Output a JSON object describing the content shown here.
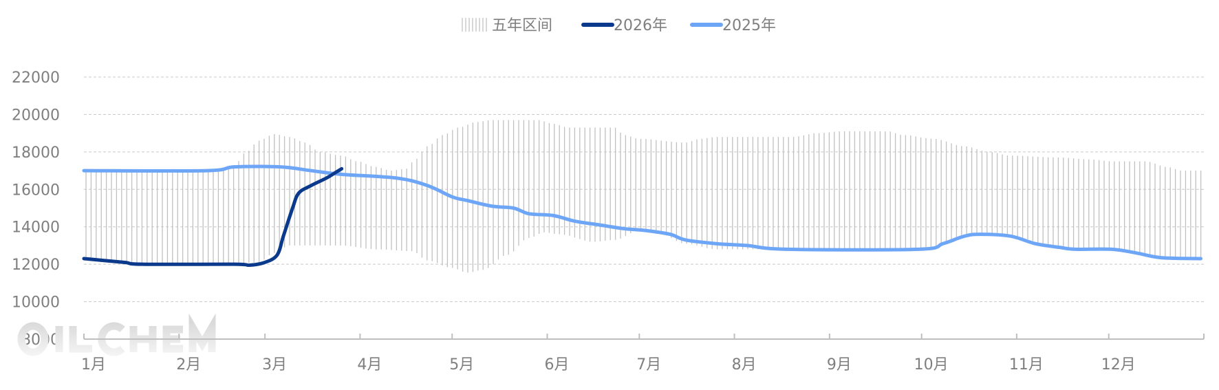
{
  "chart_data": {
    "type": "line",
    "title": "",
    "xlabel": "",
    "ylabel": "",
    "ylim": [
      8000,
      22000
    ],
    "yticks": [
      "8000",
      "10000",
      "12000",
      "14000",
      "16000",
      "18000",
      "20000",
      "22000"
    ],
    "xticks": [
      "1月",
      "2月",
      "3月",
      "4月",
      "5月",
      "6月",
      "7月",
      "8月",
      "9月",
      "10月",
      "11月",
      "12月"
    ],
    "grid": "horizontal dashed",
    "legend_position": "top",
    "legend": [
      "五年区间",
      "2026年",
      "2025年"
    ],
    "colors": {
      "range": "#c0c0c0",
      "y2026": "#0b3a8c",
      "y2025": "#6ea6f7",
      "text": "#7f7f7f",
      "axis": "#bfbfbf"
    },
    "range": {
      "name": "五年区间",
      "upper": [
        [
          "01-01",
          17000
        ],
        [
          "02-16",
          17000
        ],
        [
          "02-19",
          17300
        ],
        [
          "02-23",
          18000
        ],
        [
          "02-27",
          18600
        ],
        [
          "03-04",
          18950
        ],
        [
          "03-09",
          18800
        ],
        [
          "03-14",
          18500
        ],
        [
          "03-19",
          18000
        ],
        [
          "03-26",
          17800
        ],
        [
          "03-31",
          17500
        ],
        [
          "04-06",
          17200
        ],
        [
          "04-11",
          17000
        ],
        [
          "04-16",
          17100
        ],
        [
          "04-19",
          17600
        ],
        [
          "04-23",
          18300
        ],
        [
          "04-28",
          18900
        ],
        [
          "05-03",
          19300
        ],
        [
          "05-09",
          19600
        ],
        [
          "05-14",
          19700
        ],
        [
          "05-29",
          19700
        ],
        [
          "06-03",
          19500
        ],
        [
          "06-08",
          19300
        ],
        [
          "06-23",
          19300
        ],
        [
          "06-26",
          18900
        ],
        [
          "07-01",
          18700
        ],
        [
          "07-16",
          18500
        ],
        [
          "07-21",
          18700
        ],
        [
          "07-26",
          18800
        ],
        [
          "08-20",
          18800
        ],
        [
          "08-28",
          19000
        ],
        [
          "09-05",
          19100
        ],
        [
          "09-20",
          19100
        ],
        [
          "09-25",
          18900
        ],
        [
          "10-05",
          18700
        ],
        [
          "10-15",
          18300
        ],
        [
          "10-23",
          18000
        ],
        [
          "10-30",
          17800
        ],
        [
          "11-15",
          17700
        ],
        [
          "11-25",
          17600
        ],
        [
          "12-02",
          17500
        ],
        [
          "12-13",
          17500
        ],
        [
          "12-20",
          17200
        ],
        [
          "12-25",
          17000
        ],
        [
          "12-31",
          17000
        ]
      ],
      "lower": [
        [
          "01-01",
          12200
        ],
        [
          "01-17",
          12000
        ],
        [
          "02-19",
          12000
        ],
        [
          "02-27",
          12100
        ],
        [
          "03-04",
          12600
        ],
        [
          "03-09",
          13000
        ],
        [
          "03-26",
          13000
        ],
        [
          "04-06",
          12800
        ],
        [
          "04-18",
          12700
        ],
        [
          "04-23",
          12200
        ],
        [
          "05-01",
          11800
        ],
        [
          "05-06",
          11550
        ],
        [
          "05-11",
          11700
        ],
        [
          "05-19",
          12500
        ],
        [
          "05-26",
          13400
        ],
        [
          "05-31",
          13700
        ],
        [
          "06-05",
          13600
        ],
        [
          "06-16",
          13200
        ],
        [
          "06-23",
          13300
        ],
        [
          "07-01",
          13800
        ],
        [
          "07-08",
          13600
        ],
        [
          "07-16",
          13100
        ],
        [
          "07-26",
          12800
        ],
        [
          "10-03",
          12800
        ],
        [
          "10-15",
          13500
        ],
        [
          "10-23",
          13600
        ],
        [
          "10-30",
          13500
        ],
        [
          "11-15",
          12900
        ],
        [
          "11-25",
          12800
        ],
        [
          "12-05",
          12700
        ],
        [
          "12-18",
          12350
        ],
        [
          "12-31",
          12300
        ]
      ]
    },
    "series": [
      {
        "name": "2026年",
        "points": [
          [
            "01-01",
            12300
          ],
          [
            "01-14",
            12100
          ],
          [
            "01-20",
            12000
          ],
          [
            "02-19",
            12000
          ],
          [
            "02-24",
            11950
          ],
          [
            "03-01",
            12100
          ],
          [
            "03-05",
            12500
          ],
          [
            "03-07",
            13500
          ],
          [
            "03-10",
            15000
          ],
          [
            "03-12",
            15800
          ],
          [
            "03-16",
            16200
          ],
          [
            "03-21",
            16600
          ],
          [
            "03-24",
            16900
          ],
          [
            "03-26",
            17100
          ]
        ]
      },
      {
        "name": "2025年",
        "points": [
          [
            "01-01",
            17000
          ],
          [
            "02-10",
            17000
          ],
          [
            "02-19",
            17200
          ],
          [
            "03-06",
            17200
          ],
          [
            "03-16",
            17000
          ],
          [
            "03-26",
            16800
          ],
          [
            "04-13",
            16600
          ],
          [
            "04-23",
            16200
          ],
          [
            "05-01",
            15600
          ],
          [
            "05-06",
            15400
          ],
          [
            "05-14",
            15100
          ],
          [
            "05-21",
            15000
          ],
          [
            "05-26",
            14700
          ],
          [
            "06-03",
            14600
          ],
          [
            "06-10",
            14300
          ],
          [
            "06-18",
            14100
          ],
          [
            "06-26",
            13900
          ],
          [
            "07-03",
            13800
          ],
          [
            "07-11",
            13600
          ],
          [
            "07-16",
            13300
          ],
          [
            "07-26",
            13100
          ],
          [
            "08-05",
            13000
          ],
          [
            "08-18",
            12800
          ],
          [
            "09-30",
            12800
          ],
          [
            "10-08",
            13100
          ],
          [
            "10-15",
            13500
          ],
          [
            "10-20",
            13600
          ],
          [
            "10-30",
            13500
          ],
          [
            "11-07",
            13100
          ],
          [
            "11-15",
            12900
          ],
          [
            "11-20",
            12800
          ],
          [
            "12-02",
            12800
          ],
          [
            "12-10",
            12600
          ],
          [
            "12-18",
            12350
          ],
          [
            "12-31",
            12300
          ]
        ]
      }
    ],
    "watermark": "OILCHEM"
  }
}
